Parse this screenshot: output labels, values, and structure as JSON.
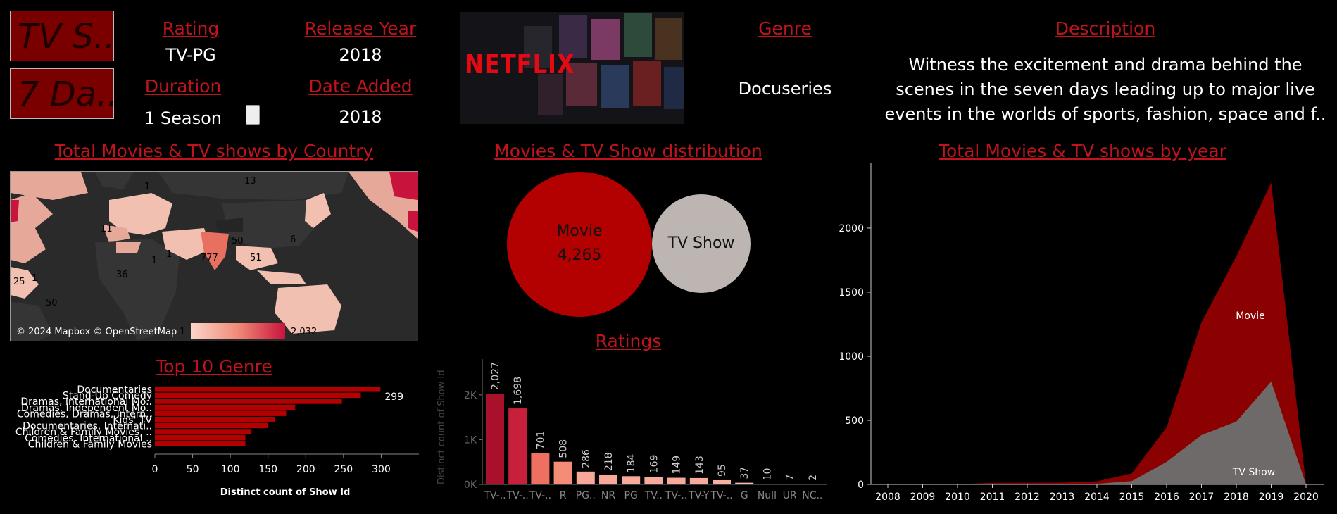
{
  "title_tiles": [
    "TV S..",
    "7 Da.."
  ],
  "header": {
    "rating_label": "Rating",
    "rating_value": "TV-PG",
    "release_label": "Release Year",
    "release_value": "2018",
    "duration_label": "Duration",
    "duration_value": "1 Season",
    "date_added_label": "Date Added",
    "date_added_value": "2018",
    "logo_text": "NETFLIX",
    "genre_label": "Genre",
    "genre_value": "Docuseries",
    "description_label": "Description",
    "description_lines": [
      "Witness the excitement and drama behind the",
      "scenes in the seven days leading up to major live",
      "events in the worlds of sports, fashion, space and f.."
    ]
  },
  "map": {
    "title": "Total Movies & TV shows by Country",
    "labels": [
      "13",
      "1",
      "11",
      "50",
      "6",
      "1",
      "777",
      "51",
      "1",
      "25",
      "1",
      "36",
      "50"
    ],
    "attribution": "© 2024 Mapbox © OpenStreetMap",
    "legend_min": "1",
    "legend_max": "2,032",
    "colors": {
      "land_dark": "#353535",
      "ocean": "#2a2a2a",
      "low": "#f2c0b0",
      "high": "#c8143c"
    }
  },
  "distribution": {
    "title": "Movies & TV Show distribution",
    "movie_label": "Movie",
    "movie_value": "4,265",
    "tv_label": "TV Show",
    "colors": {
      "movie": "#b30000",
      "tv": "#bdb5b2"
    }
  },
  "genre": {
    "title": "Top 10 Genre",
    "xlabel": "Distinct count of Show Id",
    "top_label": "299",
    "colors": {
      "bar": "#b30000"
    }
  },
  "ratings": {
    "title": "Ratings",
    "ylabel": "Distinct count of Show Id"
  },
  "yearly": {
    "title": "Total Movies & TV shows by year",
    "movie_label": "Movie",
    "tv_label": "TV Show",
    "colors": {
      "movie": "#8b0000",
      "tv": "#6e6a69"
    }
  },
  "chart_data": [
    {
      "type": "bar",
      "orientation": "horizontal",
      "title": "Top 10 Genre",
      "xlabel": "Distinct count of Show Id",
      "categories": [
        "Documentaries",
        "Stand-Up Comedy",
        "Dramas, International Mo..",
        "Dramas, Independent Mo..",
        "Comedies, Dramas, Intern..",
        "Kids' TV",
        "Documentaries, Internati..",
        "Children & Family Movies, ..",
        "Comedies, International ..",
        "Children & Family Movies"
      ],
      "values": [
        299,
        273,
        248,
        186,
        174,
        159,
        150,
        128,
        120,
        120
      ],
      "xticks": [
        "0",
        "50",
        "100",
        "150",
        "200",
        "250",
        "300"
      ],
      "xlim": [
        0,
        350
      ]
    },
    {
      "type": "bar",
      "title": "Ratings",
      "ylabel": "Distinct count of Show Id",
      "categories": [
        "TV-..",
        "TV-..",
        "TV-..",
        "R",
        "PG..",
        "NR",
        "PG",
        "TV..",
        "TV-..",
        "TV-Y",
        "TV-..",
        "G",
        "Null",
        "UR",
        "NC.."
      ],
      "values": [
        2027,
        1698,
        701,
        508,
        286,
        218,
        184,
        169,
        149,
        143,
        95,
        37,
        10,
        7,
        2
      ],
      "value_labels": [
        "2,027",
        "1,698",
        "701",
        "508",
        "286",
        "218",
        "184",
        "169",
        "149",
        "143",
        "95",
        "37",
        "10",
        "7",
        "2"
      ],
      "yticks": [
        "0K",
        "1K",
        "2K"
      ],
      "ylim": [
        0,
        2800
      ],
      "colors": [
        "#a8102c",
        "#c8203a",
        "#ee7060",
        "#f48c78",
        "#f8a898",
        "#f8a898",
        "#f8aa9a",
        "#f8aa9a",
        "#f8aa9a",
        "#f8aa9a",
        "#f8b0a0",
        "#f8c0b0",
        "#fcd0c4",
        "#fcd4c8",
        "#fcd8cc"
      ]
    },
    {
      "type": "area",
      "title": "Total Movies & TV shows by year",
      "x": [
        "2008",
        "2009",
        "2010",
        "2011",
        "2012",
        "2013",
        "2014",
        "2015",
        "2016",
        "2017",
        "2018",
        "2019",
        "2020"
      ],
      "series": [
        {
          "name": "TV Show",
          "values": [
            0,
            0,
            1,
            1,
            2,
            5,
            5,
            26,
            176,
            385,
            490,
            803,
            0
          ]
        },
        {
          "name": "Movie",
          "values": [
            1,
            2,
            1,
            11,
            11,
            9,
            19,
            60,
            270,
            880,
            1290,
            1550,
            0
          ]
        }
      ],
      "stacked": true,
      "yticks": [
        "0",
        "500",
        "1000",
        "1500",
        "2000"
      ],
      "ylim": [
        0,
        2450
      ],
      "grid": false
    }
  ]
}
